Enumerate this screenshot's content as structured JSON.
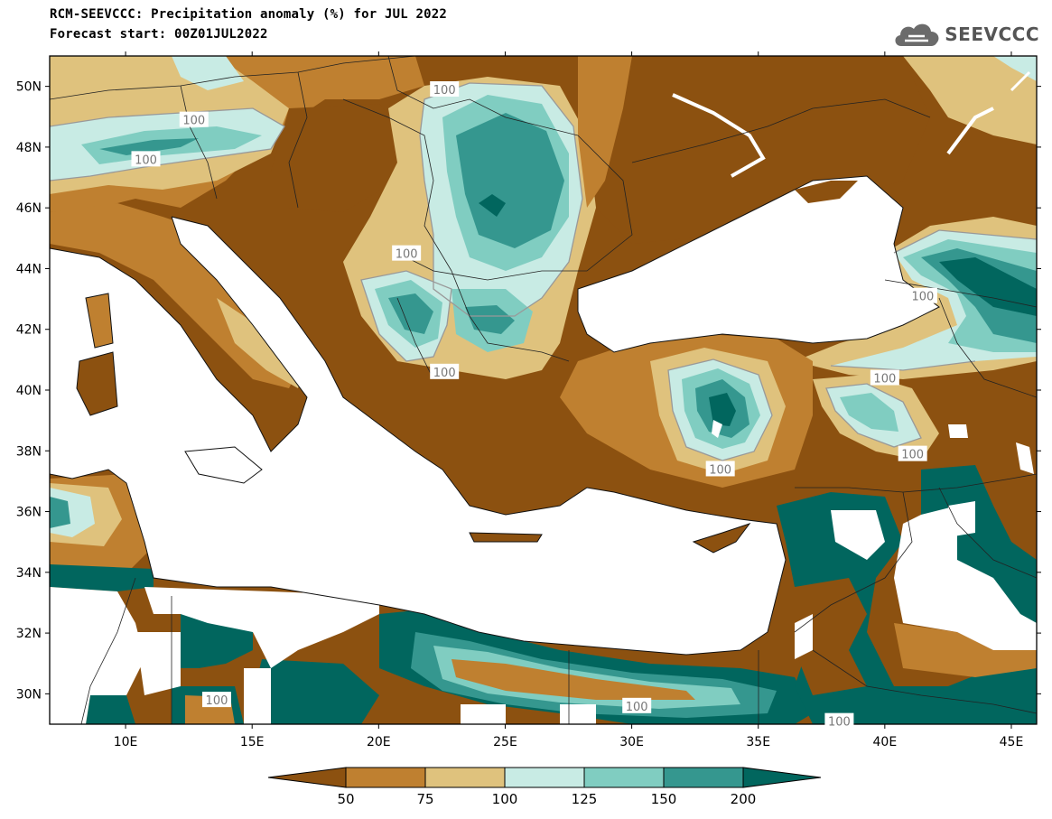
{
  "header": {
    "title": "RCM-SEEVCCC: Precipitation anomaly (%) for JUL 2022",
    "subtitle": "Forecast start: 00Z01JUL2022"
  },
  "logo": {
    "text": "SEEVCCC",
    "icon": "cloud-icon"
  },
  "map": {
    "lon_range": [
      7,
      46
    ],
    "lat_range": [
      29,
      51
    ],
    "lat_ticks": [
      {
        "value": 50,
        "label": "50N"
      },
      {
        "value": 48,
        "label": "48N"
      },
      {
        "value": 46,
        "label": "46N"
      },
      {
        "value": 44,
        "label": "44N"
      },
      {
        "value": 42,
        "label": "42N"
      },
      {
        "value": 40,
        "label": "40N"
      },
      {
        "value": 38,
        "label": "38N"
      },
      {
        "value": 36,
        "label": "36N"
      },
      {
        "value": 34,
        "label": "34N"
      },
      {
        "value": 32,
        "label": "32N"
      },
      {
        "value": 30,
        "label": "30N"
      }
    ],
    "lon_ticks": [
      {
        "value": 10,
        "label": "10E"
      },
      {
        "value": 15,
        "label": "15E"
      },
      {
        "value": 20,
        "label": "20E"
      },
      {
        "value": 25,
        "label": "25E"
      },
      {
        "value": 30,
        "label": "30E"
      },
      {
        "value": 35,
        "label": "35E"
      },
      {
        "value": 40,
        "label": "40E"
      },
      {
        "value": 45,
        "label": "45E"
      }
    ],
    "contour_labels": [
      {
        "text": "100",
        "lon": 22.6,
        "lat": 49.9
      },
      {
        "text": "100",
        "lon": 12.7,
        "lat": 48.9
      },
      {
        "text": "100",
        "lon": 10.8,
        "lat": 47.6
      },
      {
        "text": "100",
        "lon": 21.1,
        "lat": 44.5
      },
      {
        "text": "100",
        "lon": 22.6,
        "lat": 40.6
      },
      {
        "text": "100",
        "lon": 41.5,
        "lat": 43.1
      },
      {
        "text": "100",
        "lon": 40.0,
        "lat": 40.4
      },
      {
        "text": "100",
        "lon": 41.1,
        "lat": 37.9
      },
      {
        "text": "100",
        "lon": 33.5,
        "lat": 37.4
      },
      {
        "text": "100",
        "lon": 13.6,
        "lat": 29.8
      },
      {
        "text": "100",
        "lon": 30.2,
        "lat": 29.6
      },
      {
        "text": "100",
        "lon": 38.2,
        "lat": 29.1
      }
    ]
  },
  "colorbar": {
    "colors": [
      "#8c5110",
      "#bf8030",
      "#dfc27d",
      "#c8ebe4",
      "#80cdc1",
      "#35978f",
      "#01665e"
    ],
    "labels": [
      "50",
      "75",
      "100",
      "125",
      "150",
      "200"
    ]
  }
}
